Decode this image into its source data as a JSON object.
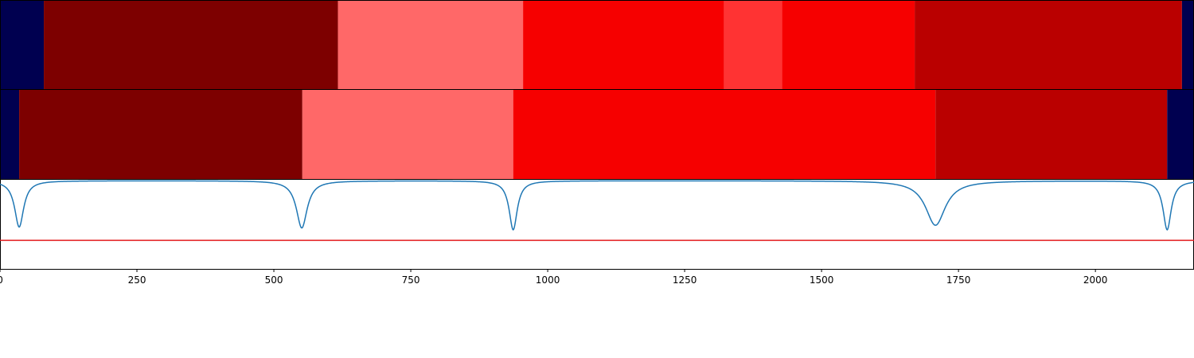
{
  "chart_data": {
    "type": "heatmap",
    "xlim": [
      0,
      2180
    ],
    "x_ticks": [
      "0",
      "250",
      "500",
      "750",
      "1000",
      "1250",
      "1500",
      "1750",
      "2000"
    ],
    "x_tick_values": [
      0,
      250,
      500,
      750,
      1000,
      1250,
      1500,
      1750,
      2000
    ],
    "grid": false,
    "legend": "none",
    "segment_rows": [
      {
        "segments": [
          {
            "start": 0,
            "end": 80,
            "color": "#000050"
          },
          {
            "start": 80,
            "end": 617,
            "color": "#7d0000"
          },
          {
            "start": 617,
            "end": 955,
            "color": "#ff6868"
          },
          {
            "start": 955,
            "end": 1322,
            "color": "#f60000"
          },
          {
            "start": 1322,
            "end": 1428,
            "color": "#ff3333"
          },
          {
            "start": 1428,
            "end": 1670,
            "color": "#f60000"
          },
          {
            "start": 1670,
            "end": 2158,
            "color": "#ba0000"
          },
          {
            "start": 2158,
            "end": 2180,
            "color": "#000050"
          }
        ]
      },
      {
        "segments": [
          {
            "start": 0,
            "end": 35,
            "color": "#000050"
          },
          {
            "start": 35,
            "end": 552,
            "color": "#7d0000"
          },
          {
            "start": 552,
            "end": 937,
            "color": "#ff6868"
          },
          {
            "start": 937,
            "end": 1708,
            "color": "#f60000"
          },
          {
            "start": 1708,
            "end": 2131,
            "color": "#ba0000"
          },
          {
            "start": 2131,
            "end": 2180,
            "color": "#000050"
          }
        ]
      }
    ],
    "line_panel": {
      "ylim": [
        0,
        1
      ],
      "threshold": 0.32,
      "threshold_color": "#e31a1c",
      "line_color": "#1f77b4",
      "baseline": 0.99,
      "dips": [
        {
          "x": 35,
          "depth": 0.52,
          "width": 10
        },
        {
          "x": 551,
          "depth": 0.53,
          "width": 12
        },
        {
          "x": 937,
          "depth": 0.55,
          "width": 9
        },
        {
          "x": 1708,
          "depth": 0.5,
          "width": 22
        },
        {
          "x": 2131,
          "depth": 0.55,
          "width": 9
        }
      ]
    }
  }
}
